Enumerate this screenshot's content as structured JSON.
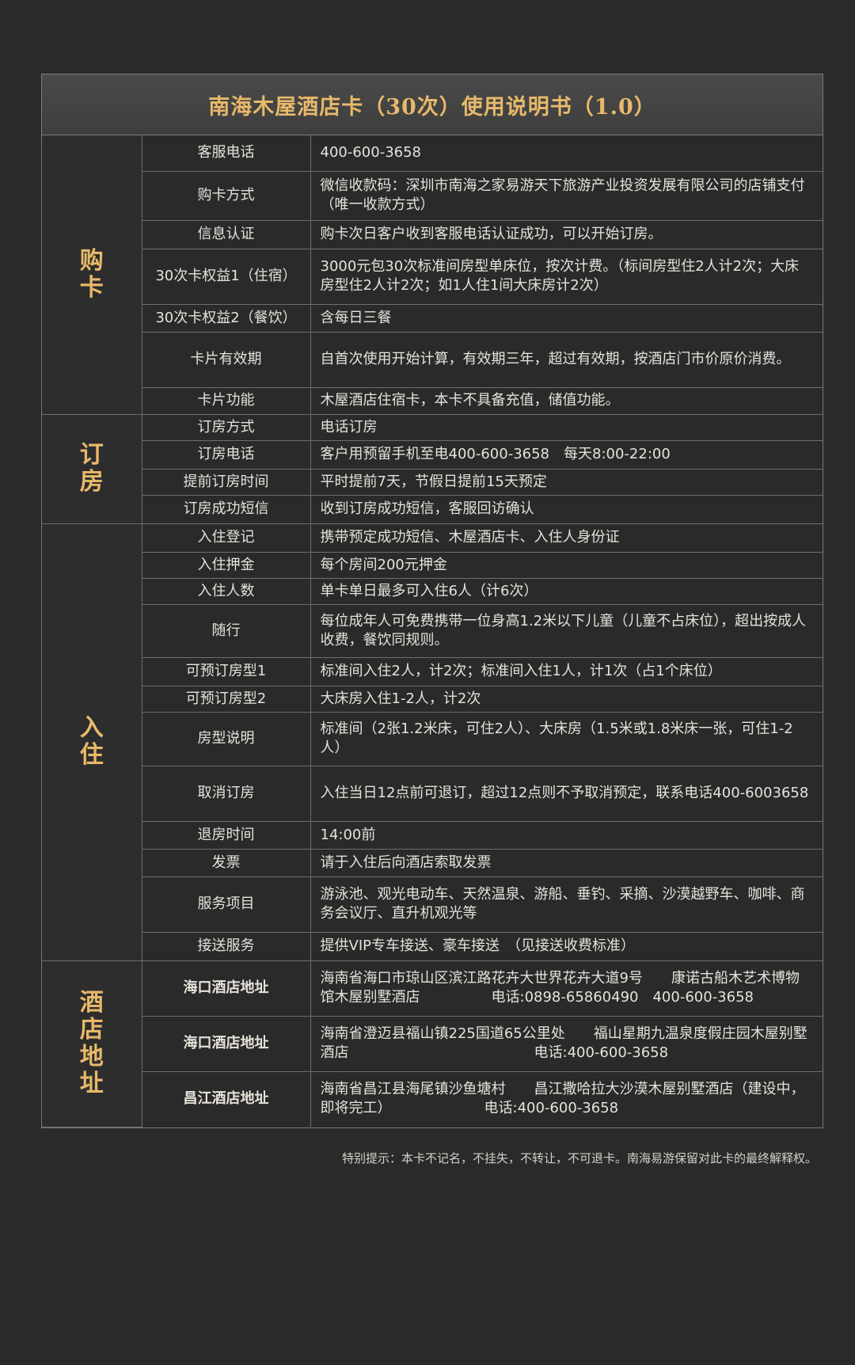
{
  "title": "南海木屋酒店卡（30次）使用说明书（1.0）",
  "sections": [
    {
      "name": "购卡",
      "rows": [
        {
          "label": "客服电话",
          "value": "400-600-3658"
        },
        {
          "label": "购卡方式",
          "value": "微信收款码：深圳市南海之家易游天下旅游产业投资发展有限公司的店铺支付（唯一收款方式）"
        },
        {
          "label": "信息认证",
          "value": "购卡次日客户收到客服电话认证成功，可以开始订房。"
        },
        {
          "label": "30次卡权益1（住宿）",
          "value": "3000元包30次标准间房型单床位，按次计费。（标间房型住2人计2次；大床房型住2人计2次；如1人住1间大床房计2次）"
        },
        {
          "label": "30次卡权益2（餐饮）",
          "value": "含每日三餐"
        },
        {
          "label": "卡片有效期",
          "value": "自首次使用开始计算，有效期三年，超过有效期，按酒店门市价原价消费。"
        },
        {
          "label": "卡片功能",
          "value": "木屋酒店住宿卡，本卡不具备充值，储值功能。"
        }
      ]
    },
    {
      "name": "订房",
      "rows": [
        {
          "label": "订房方式",
          "value": "电话订房"
        },
        {
          "label": "订房电话",
          "value": "客户用预留手机至电400-600-3658　每天8:00-22:00"
        },
        {
          "label": "提前订房时间",
          "value": "平时提前7天，节假日提前15天预定"
        },
        {
          "label": "订房成功短信",
          "value": "收到订房成功短信，客服回访确认"
        }
      ]
    },
    {
      "name": "入住",
      "rows": [
        {
          "label": "入住登记",
          "value": "携带预定成功短信、木屋酒店卡、入住人身份证"
        },
        {
          "label": "入住押金",
          "value": "每个房间200元押金"
        },
        {
          "label": "入住人数",
          "value": "单卡单日最多可入住6人（计6次）"
        },
        {
          "label": "随行",
          "value": "每位成年人可免费携带一位身高1.2米以下儿童（儿童不占床位），超出按成人收费，餐饮同规则。"
        },
        {
          "label": "可预订房型1",
          "value": "标准间入住2人，计2次；标准间入住1人，计1次（占1个床位）"
        },
        {
          "label": "可预订房型2",
          "value": "大床房入住1-2人，计2次"
        },
        {
          "label": "房型说明",
          "value": "标准间（2张1.2米床，可住2人）、大床房（1.5米或1.8米床一张，可住1-2人）"
        },
        {
          "label": "取消订房",
          "value": "入住当日12点前可退订，超过12点则不予取消预定，联系电话400-6003658"
        },
        {
          "label": "退房时间",
          "value": "14:00前"
        },
        {
          "label": "发票",
          "value": "请于入住后向酒店索取发票"
        },
        {
          "label": "服务项目",
          "value": "游泳池、观光电动车、天然温泉、游船、垂钓、采摘、沙漠越野车、咖啡、商务会议厅、直升机观光等"
        },
        {
          "label": "接送服务",
          "value": "提供VIP专车接送、豪车接送　（见接送收费标准）"
        }
      ]
    },
    {
      "name": "酒店地址",
      "rows": [
        {
          "label": "海口酒店地址",
          "value": "海南省海口市琼山区滨江路花卉大世界花卉大道9号　　康诺古船木艺术博物馆木屋别墅酒店　　　　　电话:0898-65860490　400-600-3658"
        },
        {
          "label": "海口酒店地址",
          "value": "海南省澄迈县福山镇225国道65公里处　　福山星期九温泉度假庄园木屋别墅酒店　　　　　　　　　　　　　电话:400-600-3658"
        },
        {
          "label": "昌江酒店地址",
          "value": "海南省昌江县海尾镇沙鱼塘村　　昌江撒哈拉大沙漠木屋别墅酒店（建设中，即将完工）　　　　　　　电话:400-600-3658"
        }
      ]
    }
  ],
  "note": "特别提示：本卡不记名，不挂失，不转让，不可退卡。南海易游保留对此卡的最终解释权。"
}
